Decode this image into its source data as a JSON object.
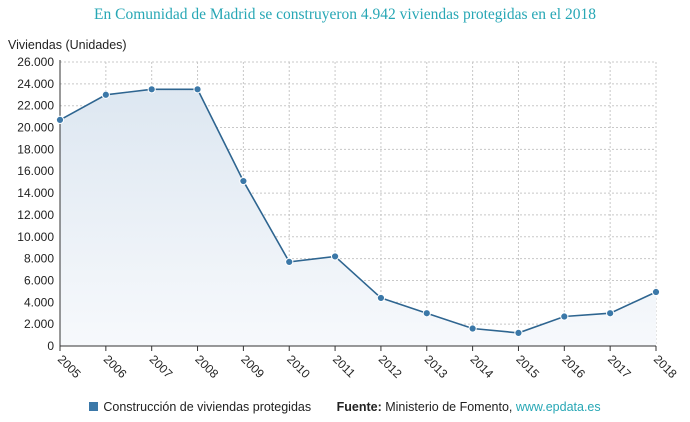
{
  "title": "En Comunidad de Madrid se construyeron 4.942 viviendas protegidas en el 2018",
  "chart_data": {
    "type": "area",
    "title": "En Comunidad de Madrid se construyeron 4.942 viviendas protegidas en el 2018",
    "xlabel": "",
    "ylabel": "Viviendas (Unidades)",
    "ylim": [
      0,
      26000
    ],
    "yticks": [
      0,
      2000,
      4000,
      6000,
      8000,
      10000,
      12000,
      14000,
      16000,
      18000,
      20000,
      22000,
      24000,
      26000
    ],
    "ytick_labels": [
      "0",
      "2.000",
      "4.000",
      "6.000",
      "8.000",
      "10.000",
      "12.000",
      "14.000",
      "16.000",
      "18.000",
      "20.000",
      "22.000",
      "24.000",
      "26.000"
    ],
    "categories": [
      "2005",
      "2006",
      "2007",
      "2008",
      "2009",
      "2010",
      "2011",
      "2012",
      "2013",
      "2014",
      "2015",
      "2016",
      "2017",
      "2018"
    ],
    "series": [
      {
        "name": "Construcción de viviendas protegidas",
        "values": [
          20700,
          23000,
          23500,
          23500,
          15100,
          7700,
          8200,
          4400,
          3000,
          1600,
          1200,
          2700,
          3000,
          4942
        ]
      }
    ],
    "grid": true,
    "legend": "bottom"
  },
  "legend": {
    "label": "Construcción de viviendas protegidas",
    "source_label": "Fuente:",
    "source_text": "Ministerio de Fomento,",
    "source_link": "www.epdata.es"
  },
  "colors": {
    "line": "#2e6590",
    "marker": "#3b78a8",
    "fill_top": "#dde7f1",
    "fill_bottom": "#f7f9fc",
    "grid": "#c8c8c8",
    "title": "#27a7b5"
  }
}
